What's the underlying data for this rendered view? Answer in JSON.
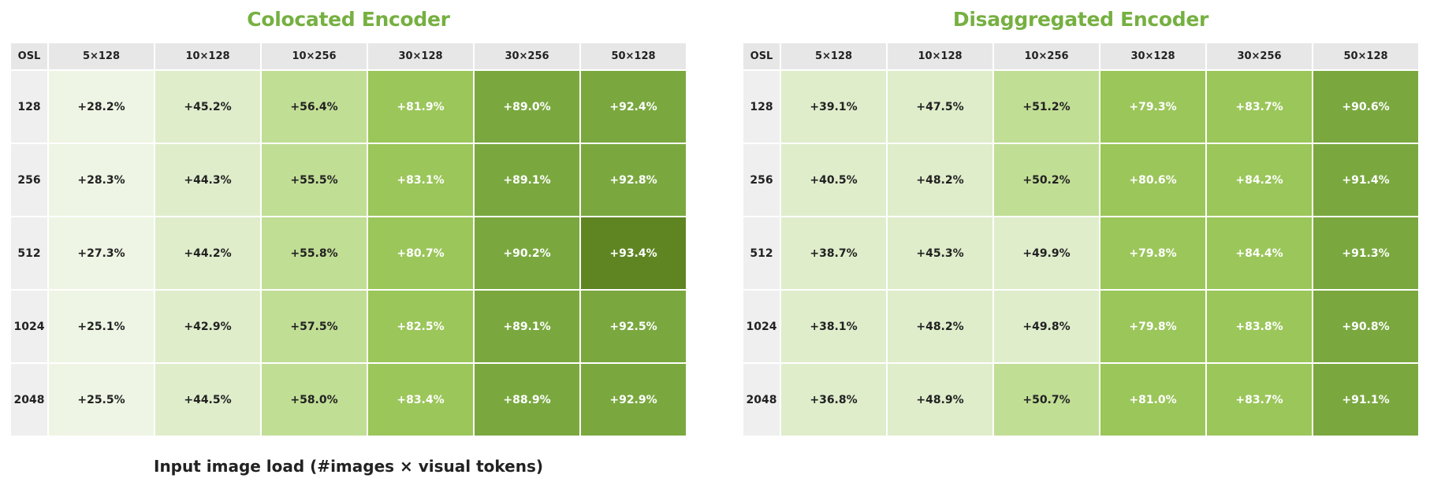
{
  "chart_data": [
    {
      "type": "heatmap",
      "title": "Colocated Encoder",
      "row_header": "OSL",
      "columns": [
        "5×128",
        "10×128",
        "10×256",
        "30×128",
        "30×256",
        "50×128"
      ],
      "rows": [
        "128",
        "256",
        "512",
        "1024",
        "2048"
      ],
      "values": [
        [
          "+28.2%",
          "+45.2%",
          "+56.4%",
          "+81.9%",
          "+89.0%",
          "+92.4%"
        ],
        [
          "+28.3%",
          "+44.3%",
          "+55.5%",
          "+83.1%",
          "+89.1%",
          "+92.8%"
        ],
        [
          "+27.3%",
          "+44.2%",
          "+55.8%",
          "+80.7%",
          "+90.2%",
          "+93.4%"
        ],
        [
          "+25.1%",
          "+42.9%",
          "+57.5%",
          "+82.5%",
          "+89.1%",
          "+92.5%"
        ],
        [
          "+25.5%",
          "+44.5%",
          "+58.0%",
          "+83.4%",
          "+88.9%",
          "+92.9%"
        ]
      ]
    },
    {
      "type": "heatmap",
      "title": "Disaggregated Encoder",
      "row_header": "OSL",
      "columns": [
        "5×128",
        "10×128",
        "10×256",
        "30×128",
        "30×256",
        "50×128"
      ],
      "rows": [
        "128",
        "256",
        "512",
        "1024",
        "2048"
      ],
      "values": [
        [
          "+39.1%",
          "+47.5%",
          "+51.2%",
          "+79.3%",
          "+83.7%",
          "+90.6%"
        ],
        [
          "+40.5%",
          "+48.2%",
          "+50.2%",
          "+80.6%",
          "+84.2%",
          "+91.4%"
        ],
        [
          "+38.7%",
          "+45.3%",
          "+49.9%",
          "+79.8%",
          "+84.4%",
          "+91.3%"
        ],
        [
          "+38.1%",
          "+48.2%",
          "+49.8%",
          "+79.8%",
          "+83.8%",
          "+90.8%"
        ],
        [
          "+36.8%",
          "+48.9%",
          "+50.7%",
          "+81.0%",
          "+83.7%",
          "+91.1%"
        ]
      ]
    }
  ],
  "xlabel": "Input image load (#images × visual tokens)",
  "colors": {
    "title": "#76b041",
    "header_bg": "#e7e7e7",
    "osl_bg": "#efefef",
    "scale": [
      "#eef5e4",
      "#dfedcb",
      "#c1de95",
      "#9bc65a",
      "#7aa83f",
      "#5e8522"
    ]
  }
}
